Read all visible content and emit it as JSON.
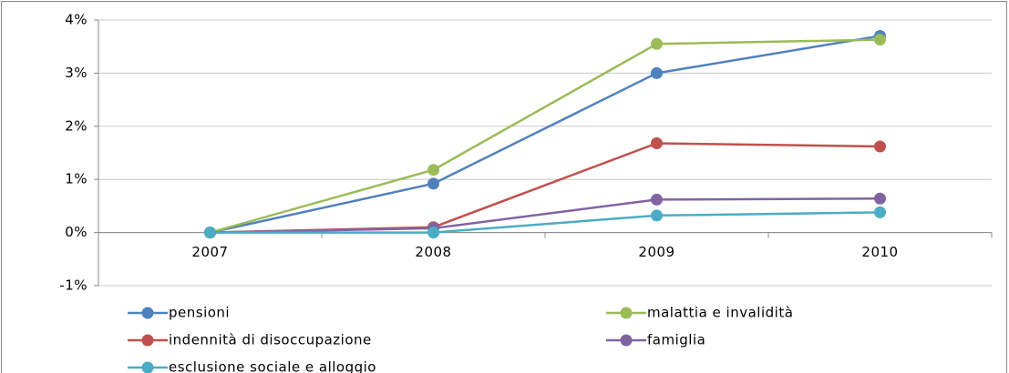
{
  "chart_data": {
    "type": "line",
    "categories": [
      "2007",
      "2008",
      "2009",
      "2010"
    ],
    "series": [
      {
        "name": "pensioni",
        "color": "#4f81bd",
        "values": [
          0,
          0.92,
          3.0,
          3.7
        ]
      },
      {
        "name": "malattia e invalidità",
        "color": "#9bbb59",
        "values": [
          0,
          1.18,
          3.55,
          3.63
        ]
      },
      {
        "name": "indennità di disoccupazione",
        "color": "#c0504d",
        "values": [
          0,
          0.1,
          1.68,
          1.62
        ]
      },
      {
        "name": "famiglia",
        "color": "#8064a2",
        "values": [
          0,
          0.08,
          0.62,
          0.64
        ]
      },
      {
        "name": "esclusione sociale e alloggio",
        "color": "#4bacc6",
        "values": [
          0,
          0,
          0.32,
          0.38
        ]
      }
    ],
    "ylim": [
      -1,
      4
    ],
    "yticks": [
      {
        "value": -1,
        "label": "-1%"
      },
      {
        "value": 0,
        "label": "0%"
      },
      {
        "value": 1,
        "label": "1%"
      },
      {
        "value": 2,
        "label": "2%"
      },
      {
        "value": 3,
        "label": "3%"
      },
      {
        "value": 4,
        "label": "4%"
      }
    ],
    "grid": true,
    "legend": "bottom"
  }
}
